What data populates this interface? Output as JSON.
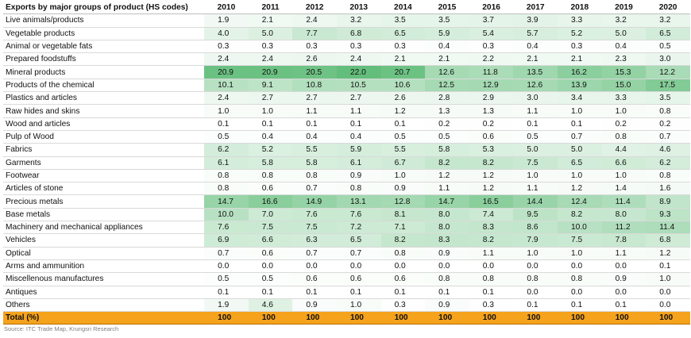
{
  "chart_data": {
    "type": "table",
    "title": "Exports by major groups of product (HS codes)",
    "columns": [
      "2010",
      "2011",
      "2012",
      "2013",
      "2014",
      "2015",
      "2016",
      "2017",
      "2018",
      "2019",
      "2020"
    ],
    "rows": [
      {
        "label": "Live animals/products",
        "values": [
          "1.9",
          "2.1",
          "2.4",
          "3.2",
          "3.5",
          "3.5",
          "3.7",
          "3.9",
          "3.3",
          "3.2",
          "3.2"
        ]
      },
      {
        "label": "Vegetable products",
        "values": [
          "4.0",
          "5.0",
          "7.7",
          "6.8",
          "6.5",
          "5.9",
          "5.4",
          "5.7",
          "5.2",
          "5.0",
          "6.5"
        ]
      },
      {
        "label": "Animal or vegetable fats",
        "values": [
          "0.3",
          "0.3",
          "0.3",
          "0.3",
          "0.3",
          "0.4",
          "0.3",
          "0.4",
          "0.3",
          "0.4",
          "0.5"
        ]
      },
      {
        "label": "Prepared foodstuffs",
        "values": [
          "2.4",
          "2.4",
          "2.6",
          "2.4",
          "2.1",
          "2.1",
          "2.2",
          "2.1",
          "2.1",
          "2.3",
          "3.0"
        ]
      },
      {
        "label": "Mineral products",
        "values": [
          "20.9",
          "20.9",
          "20.5",
          "22.0",
          "20.7",
          "12.6",
          "11.8",
          "13.5",
          "16.2",
          "15.3",
          "12.2"
        ]
      },
      {
        "label": "Products of the chemical",
        "values": [
          "10.1",
          "9.1",
          "10.8",
          "10.5",
          "10.6",
          "12.5",
          "12.9",
          "12.6",
          "13.9",
          "15.0",
          "17.5"
        ]
      },
      {
        "label": "Plastics and articles",
        "values": [
          "2.4",
          "2.7",
          "2.7",
          "2.7",
          "2.6",
          "2.8",
          "2.9",
          "3.0",
          "3.4",
          "3.3",
          "3.5"
        ]
      },
      {
        "label": "Raw hides and skins",
        "values": [
          "1.0",
          "1.0",
          "1.1",
          "1.1",
          "1.2",
          "1.3",
          "1.3",
          "1.1",
          "1.0",
          "1.0",
          "0.8"
        ]
      },
      {
        "label": "Wood and articles",
        "values": [
          "0.1",
          "0.1",
          "0.1",
          "0.1",
          "0.1",
          "0.2",
          "0.2",
          "0.1",
          "0.1",
          "0.2",
          "0.2"
        ]
      },
      {
        "label": "Pulp of Wood",
        "values": [
          "0.5",
          "0.4",
          "0.4",
          "0.4",
          "0.5",
          "0.5",
          "0.6",
          "0.5",
          "0.7",
          "0.8",
          "0.7"
        ]
      },
      {
        "label": "Fabrics",
        "values": [
          "6.2",
          "5.2",
          "5.5",
          "5.9",
          "5.5",
          "5.8",
          "5.3",
          "5.0",
          "5.0",
          "4.4",
          "4.6"
        ]
      },
      {
        "label": "Garments",
        "values": [
          "6.1",
          "5.8",
          "5.8",
          "6.1",
          "6.7",
          "8.2",
          "8.2",
          "7.5",
          "6.5",
          "6.6",
          "6.2"
        ]
      },
      {
        "label": "Footwear",
        "values": [
          "0.8",
          "0.8",
          "0.8",
          "0.9",
          "1.0",
          "1.2",
          "1.2",
          "1.0",
          "1.0",
          "1.0",
          "0.8"
        ]
      },
      {
        "label": "Articles of stone",
        "values": [
          "0.8",
          "0.6",
          "0.7",
          "0.8",
          "0.9",
          "1.1",
          "1.2",
          "1.1",
          "1.2",
          "1.4",
          "1.6"
        ]
      },
      {
        "label": "Precious metals",
        "values": [
          "14.7",
          "16.6",
          "14.9",
          "13.1",
          "12.8",
          "14.7",
          "16.5",
          "14.4",
          "12.4",
          "11.4",
          "8.9"
        ]
      },
      {
        "label": "Base metals",
        "values": [
          "10.0",
          "7.0",
          "7.6",
          "7.6",
          "8.1",
          "8.0",
          "7.4",
          "9.5",
          "8.2",
          "8.0",
          "9.3"
        ]
      },
      {
        "label": "Machinery and mechanical appliances",
        "values": [
          "7.6",
          "7.5",
          "7.5",
          "7.2",
          "7.1",
          "8.0",
          "8.3",
          "8.6",
          "10.0",
          "11.2",
          "11.4"
        ]
      },
      {
        "label": "Vehicles",
        "values": [
          "6.9",
          "6.6",
          "6.3",
          "6.5",
          "8.2",
          "8.3",
          "8.2",
          "7.9",
          "7.5",
          "7.8",
          "6.8"
        ]
      },
      {
        "label": "Optical",
        "values": [
          "0.7",
          "0.6",
          "0.7",
          "0.7",
          "0.8",
          "0.9",
          "1.1",
          "1.0",
          "1.0",
          "1.1",
          "1.2"
        ]
      },
      {
        "label": "Arms and ammunition",
        "values": [
          "0.0",
          "0.0",
          "0.0",
          "0.0",
          "0.0",
          "0.0",
          "0.0",
          "0.0",
          "0.0",
          "0.0",
          "0.1"
        ]
      },
      {
        "label": "Miscellenous manufactures",
        "values": [
          "0.5",
          "0.5",
          "0.6",
          "0.6",
          "0.6",
          "0.8",
          "0.8",
          "0.8",
          "0.8",
          "0.9",
          "1.0"
        ]
      },
      {
        "label": "Antiques",
        "values": [
          "0.1",
          "0.1",
          "0.1",
          "0.1",
          "0.1",
          "0.1",
          "0.1",
          "0.0",
          "0.0",
          "0.0",
          "0.0"
        ]
      },
      {
        "label": "Others",
        "values": [
          "1.9",
          "4.6",
          "0.9",
          "1.0",
          "0.3",
          "0.9",
          "0.3",
          "0.1",
          "0.1",
          "0.1",
          "0.0"
        ]
      }
    ],
    "total": {
      "label": "Total (%)",
      "values": [
        "100",
        "100",
        "100",
        "100",
        "100",
        "100",
        "100",
        "100",
        "100",
        "100",
        "100"
      ]
    },
    "heat_colors": {
      "low": "#ffffff",
      "high": "#63be7b",
      "total_row": "#f5a21c"
    }
  },
  "source": "Source: ITC Trade Map, Krungsri Research"
}
